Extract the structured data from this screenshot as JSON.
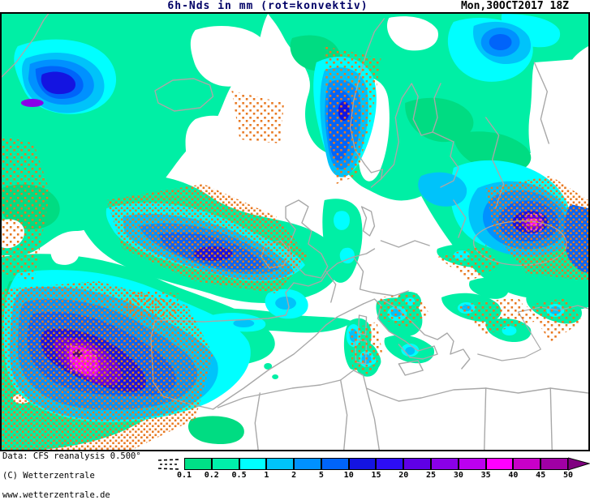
{
  "header": {
    "title": "6h-Nds in mm (rot=konvektiv)",
    "timestamp": "Mon,30OCT2017 18Z"
  },
  "footer": {
    "data_source": "Data: CFS reanalysis 0.500°",
    "copyright": "(C) Wetterzentrale",
    "website": "www.wetterzentrale.de"
  },
  "legend": {
    "unit": "mm",
    "tick_labels": [
      "0.1",
      "0.2",
      "0.5",
      "1",
      "2",
      "5",
      "10",
      "15",
      "20",
      "25",
      "30",
      "35",
      "40",
      "45",
      "50"
    ],
    "cell_colors": [
      "#00e087",
      "#00f0aa",
      "#00ffff",
      "#00c3fa",
      "#0091ff",
      "#0064fa",
      "#1414e1",
      "#2d0df5",
      "#5f00e6",
      "#8a00e8",
      "#bc00f0",
      "#ff00ff",
      "#c800c8",
      "#a000a5"
    ],
    "overflow_arrow_color": "#800080",
    "below_minimum_symbol": "dashed-lines"
  },
  "map": {
    "convective_stipple_color": "#e87820",
    "extreme_core_stipple_color": "#ff5ad2",
    "coastline_color": "#a8a8a8",
    "no_precip_color": "#ffffff"
  }
}
